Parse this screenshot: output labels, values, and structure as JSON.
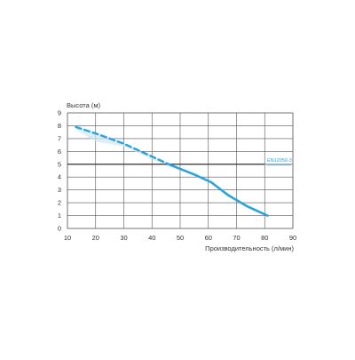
{
  "chart_data": {
    "type": "line",
    "title": "",
    "ylabel": "Высота (м)",
    "xlabel": "Производительность (л/мин)",
    "xlim": [
      10,
      90
    ],
    "ylim": [
      0,
      9
    ],
    "xticks": [
      10,
      20,
      30,
      40,
      50,
      60,
      70,
      80,
      90
    ],
    "yticks": [
      0,
      1,
      2,
      3,
      4,
      5,
      6,
      7,
      8,
      9
    ],
    "grid": true,
    "colors": {
      "curve": "#29a3e0",
      "shade": "#cce8f7",
      "reference_line": "#333333",
      "grid": "#555555",
      "text": "#333333",
      "reference_label": "#29a3e0"
    },
    "curve_dashed": [
      {
        "x": 13,
        "y": 7.9
      },
      {
        "x": 20,
        "y": 7.4
      },
      {
        "x": 30,
        "y": 6.6
      },
      {
        "x": 40,
        "y": 5.6
      },
      {
        "x": 47,
        "y": 4.9
      }
    ],
    "curve_solid": [
      {
        "x": 47,
        "y": 4.9
      },
      {
        "x": 55,
        "y": 4.2
      },
      {
        "x": 61,
        "y": 3.6
      },
      {
        "x": 67,
        "y": 2.6
      },
      {
        "x": 74,
        "y": 1.7
      },
      {
        "x": 81,
        "y": 1.0
      }
    ],
    "reference_line": {
      "y": 5,
      "x_start": 10,
      "x_end": 80,
      "label": "EN12050-3"
    }
  }
}
